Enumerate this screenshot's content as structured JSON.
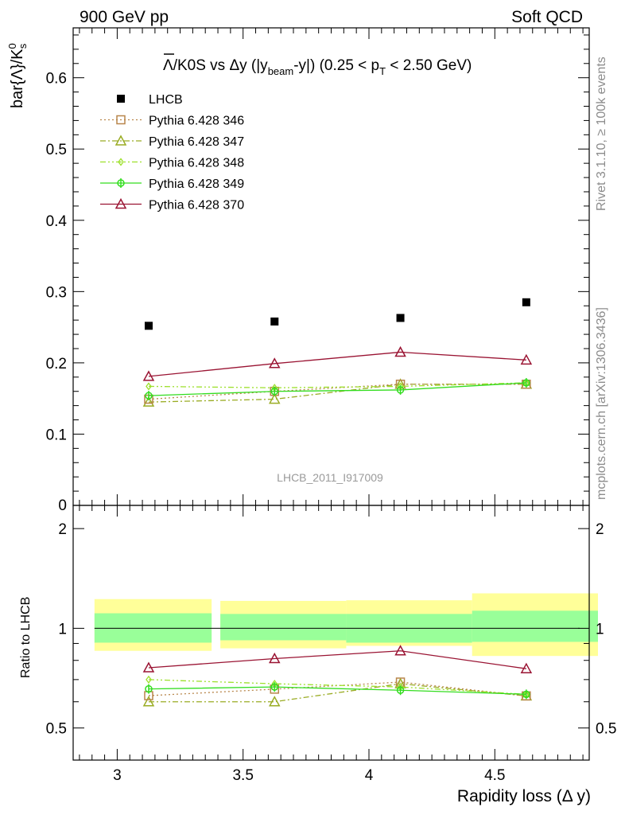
{
  "header": {
    "left": "900 GeV pp",
    "right": "Soft QCD"
  },
  "side_text": {
    "rivet": "Rivet 3.1.10, ≥ 100k events",
    "mcplots": "mcplots.cern.ch [arXiv:1306.3436]"
  },
  "watermark": "LHCB_2011_I917009",
  "colors": {
    "lhcb": "#000000",
    "p346": "#b8864b",
    "p347": "#9aac24",
    "p348": "#9de02c",
    "p349": "#33dd1f",
    "p370": "#9a1433",
    "band_outer": "#ffff99",
    "band_inner": "#99ff99"
  },
  "chart_data": [
    {
      "type": "scatter",
      "panel": "main",
      "title_parts": {
        "lambda": "Λ",
        "mid": "/K0S vs Δy (|y",
        "sub1": "beam",
        "mid2": "-y|) (0.25 < p",
        "sub2": "T",
        "end": " < 2.50 GeV)"
      },
      "ylabel_parts": {
        "main": "bar{Λ}/K",
        "sup": "0",
        "sub": "s"
      },
      "ylim": [
        0,
        0.67
      ],
      "yticks": [
        "0.1",
        "0.2",
        "0.3",
        "0.4",
        "0.5",
        "0.6"
      ],
      "ytick_values": [
        0.1,
        0.2,
        0.3,
        0.4,
        0.5,
        0.6
      ],
      "ytick_zero": "0",
      "xlim": [
        2.825,
        4.875
      ],
      "x": [
        3.125,
        3.625,
        4.125,
        4.625
      ],
      "bins": [
        [
          2.875,
          3.375
        ],
        [
          3.375,
          3.875
        ],
        [
          3.875,
          4.375
        ],
        [
          4.375,
          4.875
        ]
      ],
      "legend_position": "top-left",
      "series": [
        {
          "name": "LHCB",
          "key": "lhcb",
          "marker": "filled-square",
          "line": "none",
          "values": [
            0.252,
            0.258,
            0.263,
            0.285
          ]
        },
        {
          "name": "Pythia 6.428 346",
          "key": "p346",
          "marker": "open-square",
          "line": "dotted",
          "values": [
            0.149,
            0.16,
            0.17,
            0.17
          ]
        },
        {
          "name": "Pythia 6.428 347",
          "key": "p347",
          "marker": "open-triangle",
          "line": "dash-dot",
          "values": [
            0.145,
            0.149,
            0.17,
            0.17
          ]
        },
        {
          "name": "Pythia 6.428 348",
          "key": "p348",
          "marker": "open-diamond",
          "line": "dash-dot-dot",
          "values": [
            0.167,
            0.165,
            0.167,
            0.172
          ]
        },
        {
          "name": "Pythia 6.428 349",
          "key": "p349",
          "marker": "cross-circle",
          "line": "solid",
          "values": [
            0.154,
            0.16,
            0.162,
            0.172
          ]
        },
        {
          "name": "Pythia 6.428 370",
          "key": "p370",
          "marker": "open-triangle",
          "line": "solid",
          "values": [
            0.181,
            0.199,
            0.215,
            0.204
          ]
        }
      ]
    },
    {
      "type": "scatter",
      "panel": "ratio",
      "ylabel": "Ratio to LHCB",
      "xlabel": "Rapidity loss (Δ y)",
      "ylim": [
        0.4,
        2.35
      ],
      "yscale": "log",
      "yticks": [
        "0.5",
        "1",
        "2"
      ],
      "ytick_values": [
        0.5,
        1,
        2
      ],
      "xticks": [
        "3",
        "3.5",
        "4",
        "4.5"
      ],
      "xtick_values": [
        3,
        3.5,
        4,
        4.5
      ],
      "bands": {
        "outer": [
          [
            0.855,
            1.225
          ],
          [
            0.87,
            1.21
          ],
          [
            0.885,
            1.215
          ],
          [
            0.825,
            1.275
          ]
        ],
        "inner": [
          [
            0.905,
            1.11
          ],
          [
            0.92,
            1.105
          ],
          [
            0.905,
            1.105
          ],
          [
            0.91,
            1.13
          ]
        ]
      },
      "series": [
        {
          "key": "p346",
          "values": [
            0.626,
            0.655,
            0.688,
            0.625
          ]
        },
        {
          "key": "p347",
          "values": [
            0.6,
            0.6,
            0.68,
            0.625
          ]
        },
        {
          "key": "p348",
          "values": [
            0.7,
            0.68,
            0.665,
            0.632
          ]
        },
        {
          "key": "p349",
          "values": [
            0.656,
            0.665,
            0.65,
            0.632
          ]
        },
        {
          "key": "p370",
          "values": [
            0.76,
            0.81,
            0.855,
            0.755
          ]
        }
      ]
    }
  ]
}
